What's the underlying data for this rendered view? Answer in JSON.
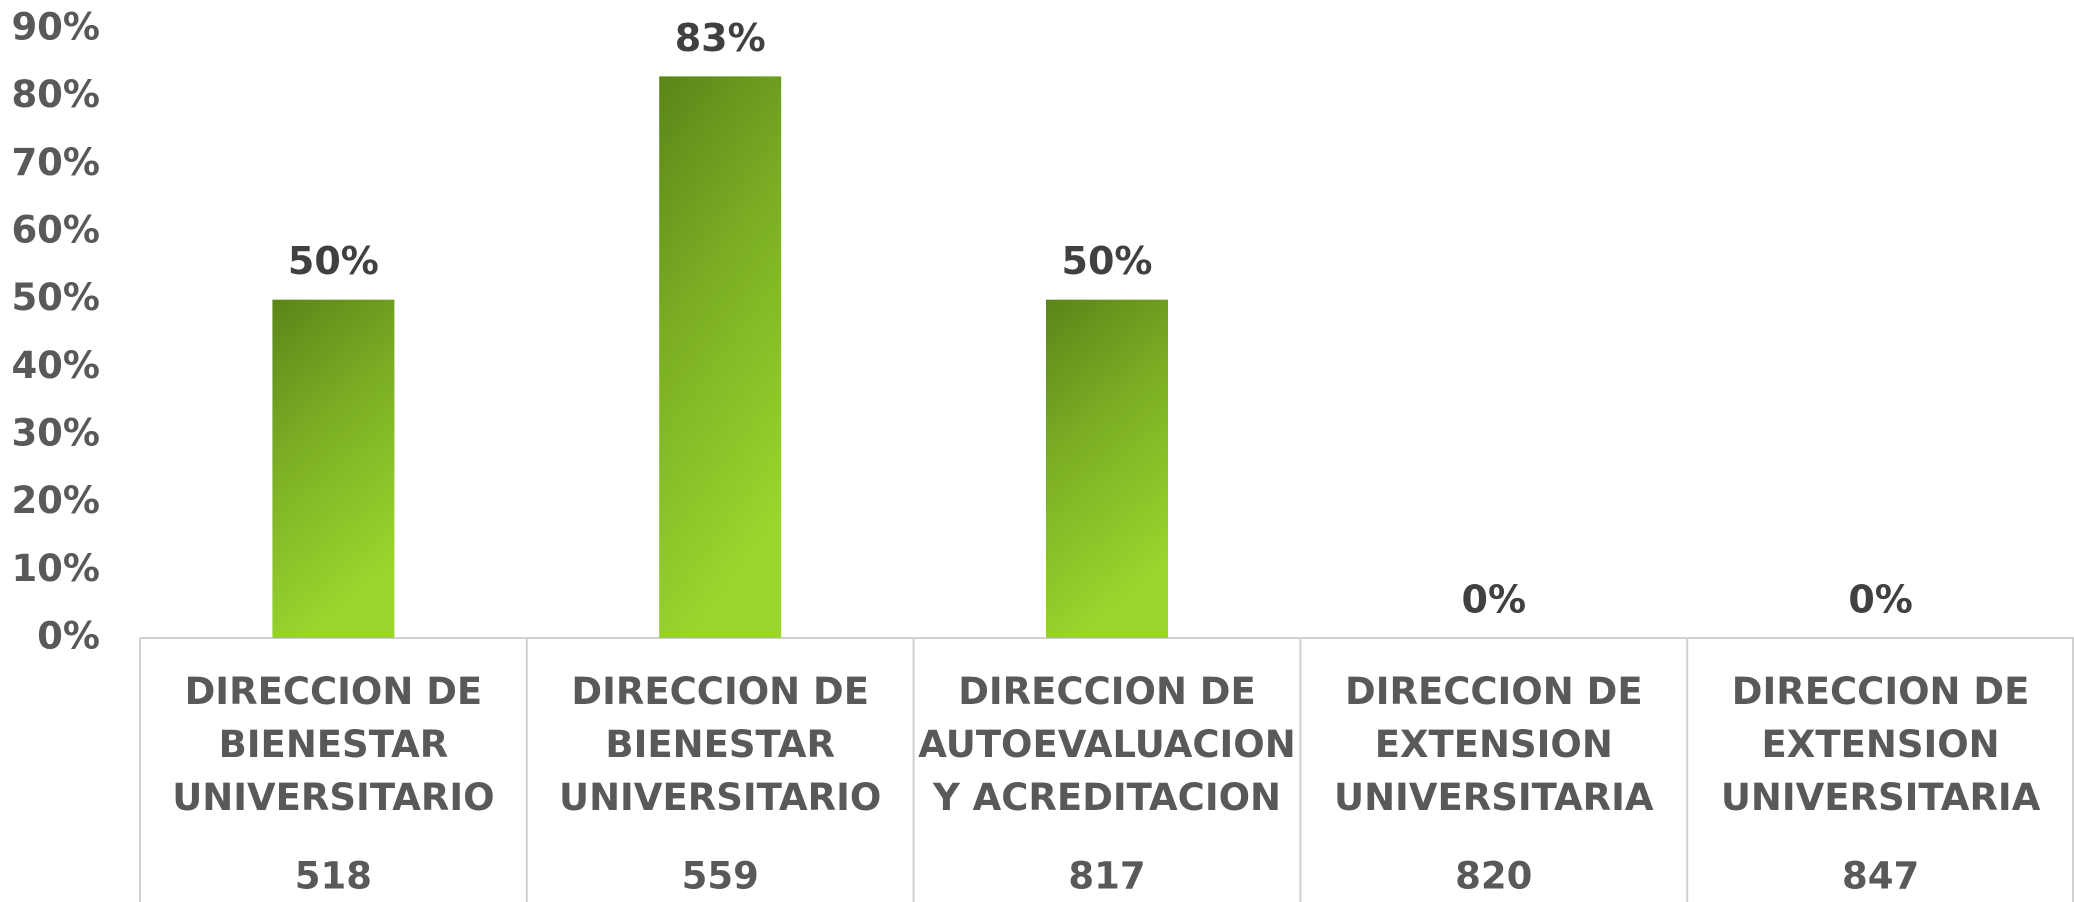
{
  "chart_data": {
    "type": "bar",
    "categories": [
      "DIRECCION DE BIENESTAR UNIVERSITARIO",
      "DIRECCION DE BIENESTAR UNIVERSITARIO",
      "DIRECCION DE AUTOEVALUACION Y ACREDITACION",
      "DIRECCION DE EXTENSION UNIVERSITARIA",
      "DIRECCION DE EXTENSION UNIVERSITARIA"
    ],
    "category_codes": [
      "518",
      "559",
      "817",
      "820",
      "847"
    ],
    "values": [
      50,
      83,
      50,
      0,
      0
    ],
    "value_labels": [
      "50%",
      "83%",
      "50%",
      "0%",
      "0%"
    ],
    "color": "#7fb424",
    "ylim": [
      0,
      90
    ],
    "yticks": [
      {
        "value": 0,
        "label": "0%"
      },
      {
        "value": 10,
        "label": "10%"
      },
      {
        "value": 20,
        "label": "20%"
      },
      {
        "value": 30,
        "label": "30%"
      },
      {
        "value": 40,
        "label": "40%"
      },
      {
        "value": 50,
        "label": "50%"
      },
      {
        "value": 60,
        "label": "60%"
      },
      {
        "value": 70,
        "label": "70%"
      },
      {
        "value": 80,
        "label": "80%"
      },
      {
        "value": 90,
        "label": "90%"
      }
    ],
    "grid": false
  }
}
